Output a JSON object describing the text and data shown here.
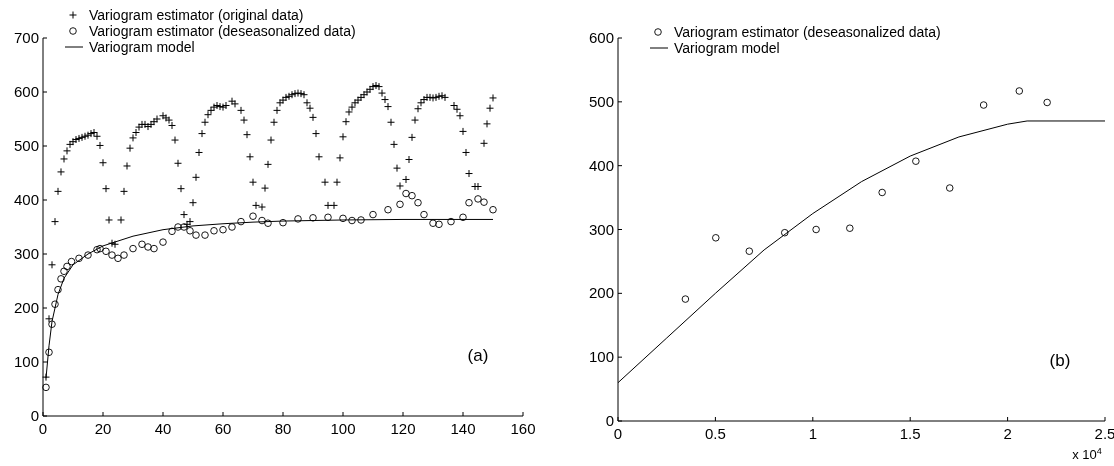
{
  "chart_data": [
    {
      "type": "scatter",
      "legend": "top left",
      "grid": false,
      "xlim": [
        0,
        160
      ],
      "xticks": [
        0,
        20,
        40,
        60,
        80,
        100,
        120,
        140,
        160
      ],
      "ylim": [
        0,
        700
      ],
      "yticks": [
        0,
        100,
        200,
        300,
        400,
        500,
        600,
        700
      ],
      "annotations": [
        "(a)"
      ],
      "series": [
        {
          "name": "Variogram estimator (original data)",
          "marker": "cross",
          "color": "#000000",
          "x": [
            1,
            2,
            3,
            4,
            5,
            6,
            7,
            8,
            9,
            10,
            11,
            12,
            13,
            14,
            15,
            16,
            17,
            18,
            19,
            20,
            21,
            22,
            23,
            24,
            26,
            27,
            28,
            29,
            30,
            31,
            32,
            33,
            34,
            35,
            36,
            37,
            38,
            40,
            41,
            42,
            43,
            44,
            45,
            46,
            47,
            48,
            49,
            50,
            51,
            52,
            53,
            54,
            55,
            56,
            57,
            58,
            59,
            60,
            61,
            63,
            64,
            66,
            67,
            68,
            69,
            70,
            71,
            73,
            74,
            75,
            76,
            77,
            78,
            79,
            80,
            81,
            82,
            83,
            84,
            85,
            86,
            87,
            88,
            89,
            90,
            91,
            92,
            94,
            95,
            97,
            98,
            99,
            100,
            101,
            102,
            103,
            104,
            105,
            106,
            107,
            108,
            109,
            110,
            111,
            112,
            113,
            114,
            115,
            116,
            117,
            118,
            119,
            121,
            122,
            123,
            124,
            125,
            126,
            127,
            128,
            129,
            130,
            131,
            132,
            133,
            134,
            137,
            138,
            139,
            140,
            141,
            142,
            144,
            145,
            147,
            148,
            149,
            150
          ],
          "values": [
            72,
            180,
            280,
            360,
            416,
            452,
            476,
            491,
            503,
            508,
            512,
            514,
            516,
            518,
            520,
            523,
            525,
            518,
            501,
            469,
            421,
            363,
            320,
            318,
            363,
            416,
            463,
            496,
            515,
            525,
            535,
            540,
            540,
            536,
            540,
            545,
            550,
            556,
            552,
            548,
            538,
            511,
            468,
            421,
            373,
            355,
            360,
            395,
            442,
            488,
            523,
            544,
            558,
            566,
            572,
            575,
            573,
            572,
            575,
            583,
            578,
            566,
            548,
            521,
            480,
            433,
            390,
            387,
            422,
            466,
            511,
            544,
            566,
            580,
            585,
            590,
            592,
            595,
            597,
            598,
            597,
            595,
            580,
            570,
            553,
            523,
            480,
            433,
            390,
            390,
            433,
            478,
            517,
            545,
            563,
            572,
            580,
            585,
            590,
            595,
            600,
            605,
            610,
            612,
            610,
            598,
            586,
            573,
            544,
            503,
            459,
            426,
            438,
            475,
            516,
            548,
            569,
            580,
            586,
            590,
            590,
            589,
            590,
            592,
            593,
            590,
            575,
            568,
            556,
            527,
            488,
            449,
            425,
            425,
            505,
            541,
            570,
            589
          ]
        },
        {
          "name": "Variogram estimator (deseasonalized data)",
          "marker": "circle",
          "color": "#000000",
          "x": [
            1,
            2,
            3,
            4,
            5,
            6,
            7,
            8,
            9.5,
            12,
            15,
            18,
            19,
            21,
            23,
            25,
            27,
            30,
            33,
            35,
            37,
            40,
            43,
            45,
            47,
            49,
            51,
            54,
            57,
            60,
            63,
            66,
            70,
            73,
            75,
            80,
            85,
            90,
            95,
            100,
            103,
            106,
            110,
            115,
            119,
            121,
            123,
            125,
            127,
            130,
            132,
            136,
            140,
            142,
            145,
            147,
            150
          ],
          "values": [
            53,
            118,
            170,
            207,
            234,
            254,
            268,
            277,
            286,
            292,
            298,
            308,
            310,
            305,
            298,
            292,
            298,
            310,
            318,
            313,
            310,
            322,
            342,
            350,
            350,
            343,
            335,
            335,
            343,
            345,
            350,
            360,
            370,
            362,
            357,
            358,
            365,
            367,
            368,
            366,
            362,
            363,
            373,
            382,
            392,
            412,
            408,
            395,
            373,
            357,
            355,
            360,
            368,
            395,
            402,
            396,
            382
          ]
        },
        {
          "name": "Variogram model",
          "type": "line",
          "marker": "none",
          "line_style": "solid",
          "color": "#000000",
          "x": [
            1,
            2,
            3,
            5,
            7,
            10,
            15,
            20,
            30,
            40,
            50,
            60,
            70,
            80,
            100,
            120,
            150
          ],
          "values": [
            70,
            130,
            175,
            225,
            255,
            280,
            300,
            315,
            333,
            345,
            352,
            356,
            359,
            361,
            363,
            364,
            364
          ]
        }
      ]
    },
    {
      "type": "scatter",
      "legend": "top left",
      "grid": false,
      "xlim": [
        0,
        2.5
      ],
      "xticks": [
        0,
        0.5,
        1,
        1.5,
        2,
        2.5
      ],
      "ylim": [
        0,
        600
      ],
      "yticks": [
        0,
        100,
        200,
        300,
        400,
        500,
        600
      ],
      "annotations": [
        "x 10$^{4}$",
        "(b)"
      ],
      "series": [
        {
          "name": "Variogram estimator (deseasonalized data)",
          "marker": "circle",
          "color": "#000000",
          "x": [
            0.346,
            0.502,
            0.674,
            0.856,
            1.017,
            1.19,
            1.356,
            1.529,
            1.703,
            1.877,
            2.06,
            2.203
          ],
          "values": [
            191,
            287,
            266,
            295,
            300,
            302,
            358,
            407,
            365,
            495,
            517,
            499
          ]
        },
        {
          "name": "Variogram model",
          "type": "line",
          "marker": "none",
          "line_style": "solid",
          "color": "#000000",
          "x": [
            0,
            0.25,
            0.5,
            0.75,
            1,
            1.25,
            1.5,
            1.75,
            2,
            2.1,
            2.5
          ],
          "values": [
            60,
            130,
            200,
            268,
            325,
            375,
            415,
            445,
            465,
            470,
            470
          ]
        }
      ]
    }
  ]
}
